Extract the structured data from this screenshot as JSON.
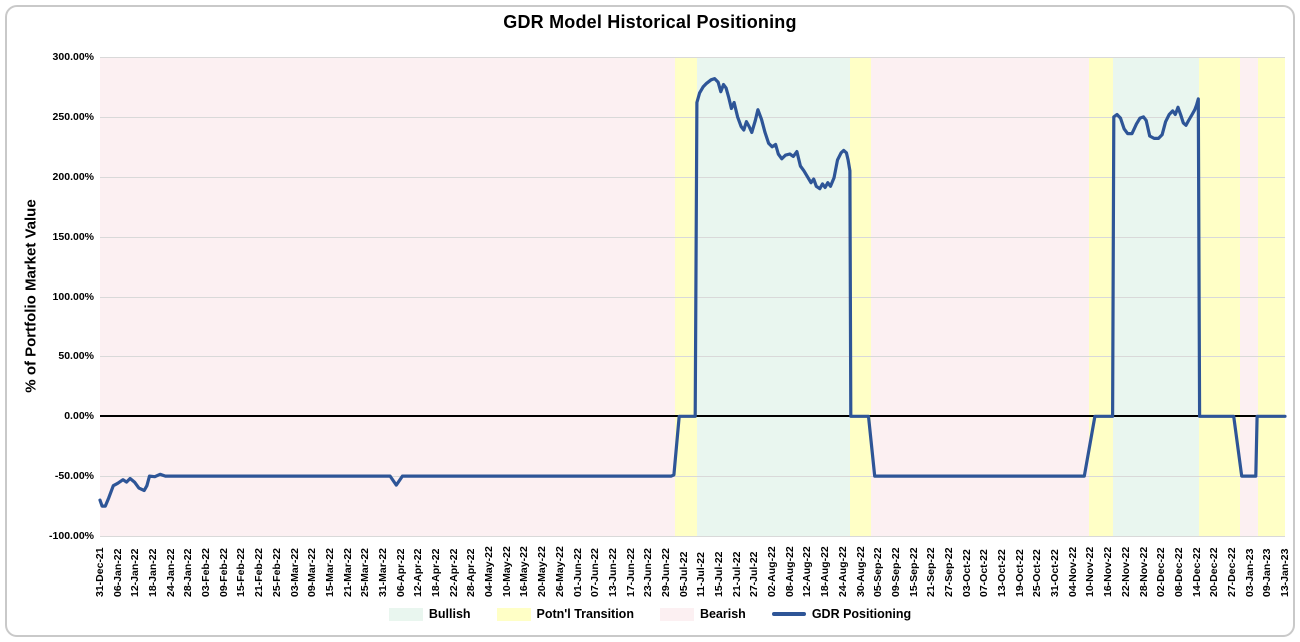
{
  "window": {
    "title": "GDR Model Historical Positioning"
  },
  "chart_data": {
    "type": "line",
    "title": "GDR Model Historical Positioning",
    "xlabel": "",
    "ylabel": "% of Portfolio Market Value",
    "ylim": [
      -100,
      300
    ],
    "grid": true,
    "legend_position": "bottom",
    "colors": {
      "bullish": "#e9f6ef",
      "transition": "#ffffc6",
      "bearish": "#fcf0f2",
      "line": "#2e5597",
      "gridline": "#d9d9d9",
      "zero_line": "#000000"
    },
    "y_ticks": [
      {
        "value": 300,
        "label": "300.00%"
      },
      {
        "value": 250,
        "label": "250.00%"
      },
      {
        "value": 200,
        "label": "200.00%"
      },
      {
        "value": 150,
        "label": "150.00%"
      },
      {
        "value": 100,
        "label": "100.00%"
      },
      {
        "value": 50,
        "label": "50.00%"
      },
      {
        "value": 0,
        "label": "0.00%"
      },
      {
        "value": -50,
        "label": "-50.00%"
      },
      {
        "value": -100,
        "label": "-100.00%"
      }
    ],
    "x_tick_labels": [
      "31-Dec-21",
      "06-Jan-22",
      "12-Jan-22",
      "18-Jan-22",
      "24-Jan-22",
      "28-Jan-22",
      "03-Feb-22",
      "09-Feb-22",
      "15-Feb-22",
      "21-Feb-22",
      "25-Feb-22",
      "03-Mar-22",
      "09-Mar-22",
      "15-Mar-22",
      "21-Mar-22",
      "25-Mar-22",
      "31-Mar-22",
      "06-Apr-22",
      "12-Apr-22",
      "18-Apr-22",
      "22-Apr-22",
      "28-Apr-22",
      "04-May-22",
      "10-May-22",
      "16-May-22",
      "20-May-22",
      "26-May-22",
      "01-Jun-22",
      "07-Jun-22",
      "13-Jun-22",
      "17-Jun-22",
      "23-Jun-22",
      "29-Jun-22",
      "05-Jul-22",
      "11-Jul-22",
      "15-Jul-22",
      "21-Jul-22",
      "27-Jul-22",
      "02-Aug-22",
      "08-Aug-22",
      "12-Aug-22",
      "18-Aug-22",
      "24-Aug-22",
      "30-Aug-22",
      "05-Sep-22",
      "09-Sep-22",
      "15-Sep-22",
      "21-Sep-22",
      "27-Sep-22",
      "03-Oct-22",
      "07-Oct-22",
      "13-Oct-22",
      "19-Oct-22",
      "25-Oct-22",
      "31-Oct-22",
      "04-Nov-22",
      "10-Nov-22",
      "16-Nov-22",
      "22-Nov-22",
      "28-Nov-22",
      "02-Dec-22",
      "08-Dec-22",
      "14-Dec-22",
      "20-Dec-22",
      "27-Dec-22",
      "03-Jan-23",
      "09-Jan-23",
      "13-Jan-23"
    ],
    "regions": [
      {
        "type": "bearish",
        "start": 0,
        "end": 32.5
      },
      {
        "type": "transition",
        "start": 32.5,
        "end": 33.75
      },
      {
        "type": "bullish",
        "start": 33.75,
        "end": 42.42
      },
      {
        "type": "transition",
        "start": 42.42,
        "end": 43.6
      },
      {
        "type": "bearish",
        "start": 43.6,
        "end": 55.9
      },
      {
        "type": "transition",
        "start": 55.9,
        "end": 57.28
      },
      {
        "type": "bullish",
        "start": 57.28,
        "end": 62.15
      },
      {
        "type": "transition",
        "start": 62.15,
        "end": 64.45
      },
      {
        "type": "bearish",
        "start": 64.45,
        "end": 65.45
      },
      {
        "type": "transition",
        "start": 65.45,
        "end": 67
      }
    ],
    "series": [
      {
        "name": "GDR Positioning",
        "color_key": "line",
        "points": [
          [
            0,
            -70
          ],
          [
            0.12,
            -75
          ],
          [
            0.3,
            -75
          ],
          [
            0.5,
            -68
          ],
          [
            0.75,
            -58
          ],
          [
            1.0,
            -56
          ],
          [
            1.3,
            -53
          ],
          [
            1.5,
            -55
          ],
          [
            1.7,
            -52
          ],
          [
            1.95,
            -55
          ],
          [
            2.2,
            -60
          ],
          [
            2.5,
            -62
          ],
          [
            2.65,
            -58
          ],
          [
            2.8,
            -50
          ],
          [
            3.1,
            -50.5
          ],
          [
            3.4,
            -48.5
          ],
          [
            3.7,
            -50
          ],
          [
            16.4,
            -50
          ],
          [
            16.75,
            -57.5
          ],
          [
            17.1,
            -50
          ],
          [
            32.3,
            -50
          ],
          [
            32.45,
            -49
          ],
          [
            32.75,
            0
          ],
          [
            33.65,
            0
          ],
          [
            33.75,
            262
          ],
          [
            33.9,
            270
          ],
          [
            34.1,
            275
          ],
          [
            34.3,
            278
          ],
          [
            34.55,
            281
          ],
          [
            34.75,
            282
          ],
          [
            34.95,
            279
          ],
          [
            35.1,
            271
          ],
          [
            35.25,
            277
          ],
          [
            35.4,
            274
          ],
          [
            35.55,
            266
          ],
          [
            35.7,
            257
          ],
          [
            35.85,
            262
          ],
          [
            36.05,
            250
          ],
          [
            36.25,
            242
          ],
          [
            36.4,
            239
          ],
          [
            36.55,
            246
          ],
          [
            36.7,
            242
          ],
          [
            36.85,
            237
          ],
          [
            37.05,
            247
          ],
          [
            37.2,
            256
          ],
          [
            37.4,
            248
          ],
          [
            37.6,
            237
          ],
          [
            37.8,
            228
          ],
          [
            38.0,
            225
          ],
          [
            38.2,
            227
          ],
          [
            38.35,
            219
          ],
          [
            38.55,
            215
          ],
          [
            38.75,
            218
          ],
          [
            39.0,
            219
          ],
          [
            39.2,
            217
          ],
          [
            39.4,
            221
          ],
          [
            39.6,
            209
          ],
          [
            39.8,
            205
          ],
          [
            40.0,
            200
          ],
          [
            40.2,
            195
          ],
          [
            40.35,
            198
          ],
          [
            40.5,
            192
          ],
          [
            40.7,
            190
          ],
          [
            40.85,
            194
          ],
          [
            41.0,
            191
          ],
          [
            41.15,
            195
          ],
          [
            41.3,
            192
          ],
          [
            41.5,
            199
          ],
          [
            41.7,
            214
          ],
          [
            41.9,
            220
          ],
          [
            42.05,
            222
          ],
          [
            42.2,
            220
          ],
          [
            42.3,
            214
          ],
          [
            42.4,
            205
          ],
          [
            42.45,
            0
          ],
          [
            43.45,
            0
          ],
          [
            43.8,
            -50
          ],
          [
            55.65,
            -50
          ],
          [
            56.25,
            0
          ],
          [
            57.25,
            0
          ],
          [
            57.32,
            250
          ],
          [
            57.5,
            252
          ],
          [
            57.7,
            249
          ],
          [
            57.9,
            240
          ],
          [
            58.1,
            236
          ],
          [
            58.35,
            236
          ],
          [
            58.6,
            244
          ],
          [
            58.8,
            249
          ],
          [
            59.0,
            250
          ],
          [
            59.15,
            247
          ],
          [
            59.35,
            234
          ],
          [
            59.6,
            232
          ],
          [
            59.85,
            232
          ],
          [
            60.05,
            235
          ],
          [
            60.25,
            246
          ],
          [
            60.45,
            252
          ],
          [
            60.65,
            255
          ],
          [
            60.8,
            252
          ],
          [
            60.95,
            258
          ],
          [
            61.1,
            252
          ],
          [
            61.25,
            245
          ],
          [
            61.4,
            243
          ],
          [
            61.55,
            247
          ],
          [
            61.75,
            252
          ],
          [
            61.9,
            256
          ],
          [
            62.0,
            260
          ],
          [
            62.1,
            265
          ],
          [
            62.17,
            0
          ],
          [
            64.1,
            0
          ],
          [
            64.55,
            -50
          ],
          [
            65.35,
            -50
          ],
          [
            65.42,
            0
          ],
          [
            67,
            0
          ]
        ]
      }
    ],
    "legend": [
      {
        "label": "Bullish",
        "type": "swatch",
        "color_key": "bullish"
      },
      {
        "label": "Potn'l Transition",
        "type": "swatch",
        "color_key": "transition"
      },
      {
        "label": "Bearish",
        "type": "swatch",
        "color_key": "bearish"
      },
      {
        "label": "GDR Positioning",
        "type": "line",
        "color_key": "line"
      }
    ]
  }
}
